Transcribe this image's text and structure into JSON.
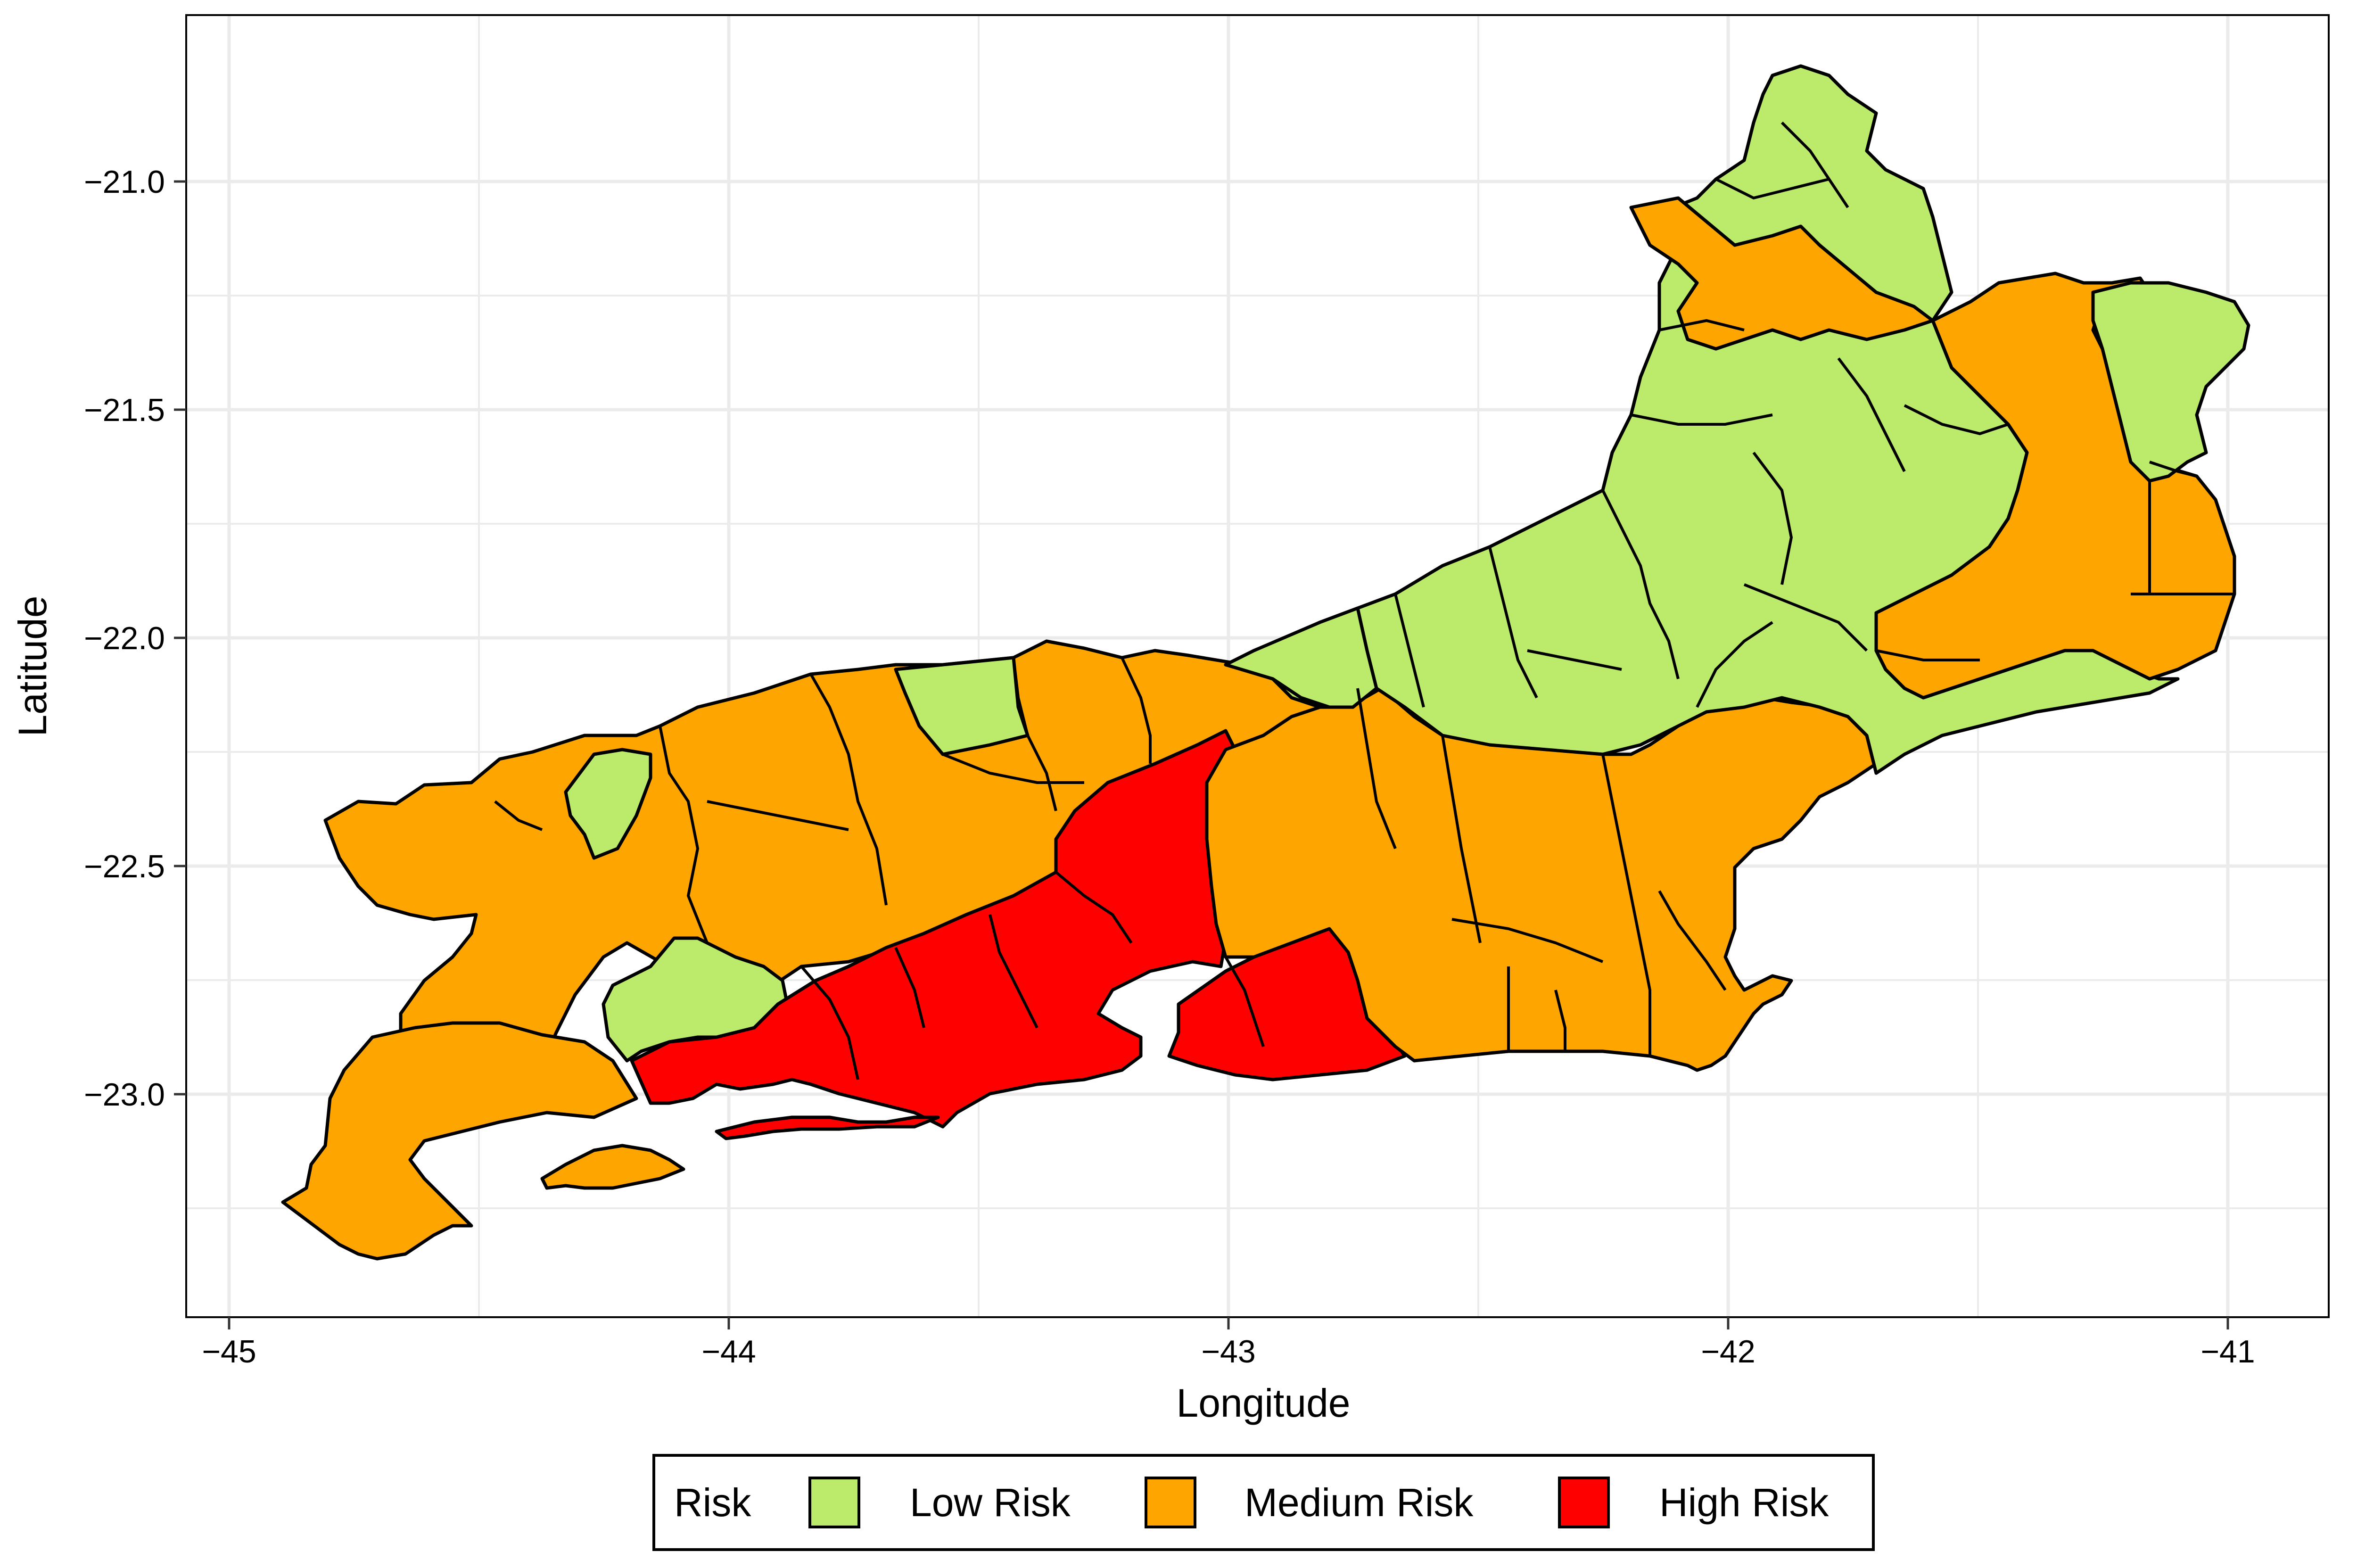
{
  "x_axis": {
    "title": "Longitude",
    "ticks": [
      "−45",
      "−44",
      "−43",
      "−42",
      "−41"
    ]
  },
  "y_axis": {
    "title": "Latitude",
    "ticks": [
      "−21.0",
      "−21.5",
      "−22.0",
      "−22.5",
      "−23.0"
    ]
  },
  "legend": {
    "title": "Risk",
    "items": [
      {
        "label": "Low Risk",
        "color": "#BCEB6B"
      },
      {
        "label": "Medium Risk",
        "color": "#FFA500"
      },
      {
        "label": "High Risk",
        "color": "#FF0000"
      }
    ]
  },
  "chart_data": {
    "type": "choropleth map",
    "xlabel": "Longitude",
    "ylabel": "Latitude",
    "xlim": [
      -45.1,
      -40.85
    ],
    "ylim": [
      -23.5,
      -20.63
    ],
    "grid": true,
    "legend_position": "bottom",
    "categories": [
      "Low Risk",
      "Medium Risk",
      "High Risk"
    ],
    "colors": {
      "Low Risk": "#BCEB6B",
      "Medium Risk": "#FFA500",
      "High Risk": "#FF0000"
    }
  }
}
